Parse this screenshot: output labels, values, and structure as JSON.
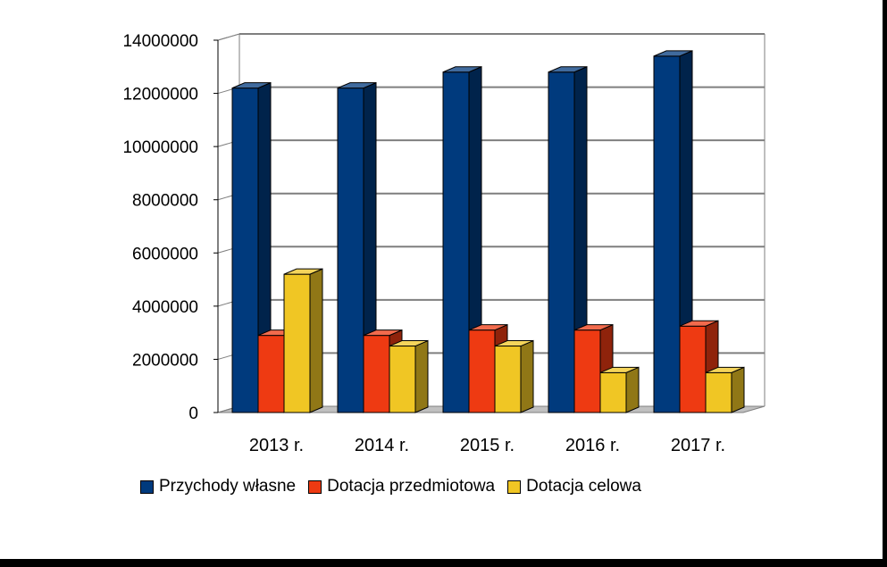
{
  "chart_data": {
    "type": "bar",
    "categories": [
      "2013 r.",
      "2014 r.",
      "2015 r.",
      "2016 r.",
      "2017 r."
    ],
    "series": [
      {
        "name": "Przychody własne",
        "values": [
          12200000,
          12200000,
          12800000,
          12800000,
          13400000
        ],
        "color": "#003a7d"
      },
      {
        "name": "Dotacja przedmiotowa",
        "values": [
          2900000,
          2900000,
          3100000,
          3100000,
          3250000
        ],
        "color": "#ee3a12"
      },
      {
        "name": "Dotacja celowa",
        "values": [
          5200000,
          2500000,
          2500000,
          1500000,
          1500000
        ],
        "color": "#f0c624"
      }
    ],
    "ylim": [
      0,
      14000000
    ],
    "yticks": [
      "0",
      "2000000",
      "4000000",
      "6000000",
      "8000000",
      "10000000",
      "12000000",
      "14000000"
    ],
    "grid": true,
    "legend_position": "bottom",
    "three_d": true
  }
}
